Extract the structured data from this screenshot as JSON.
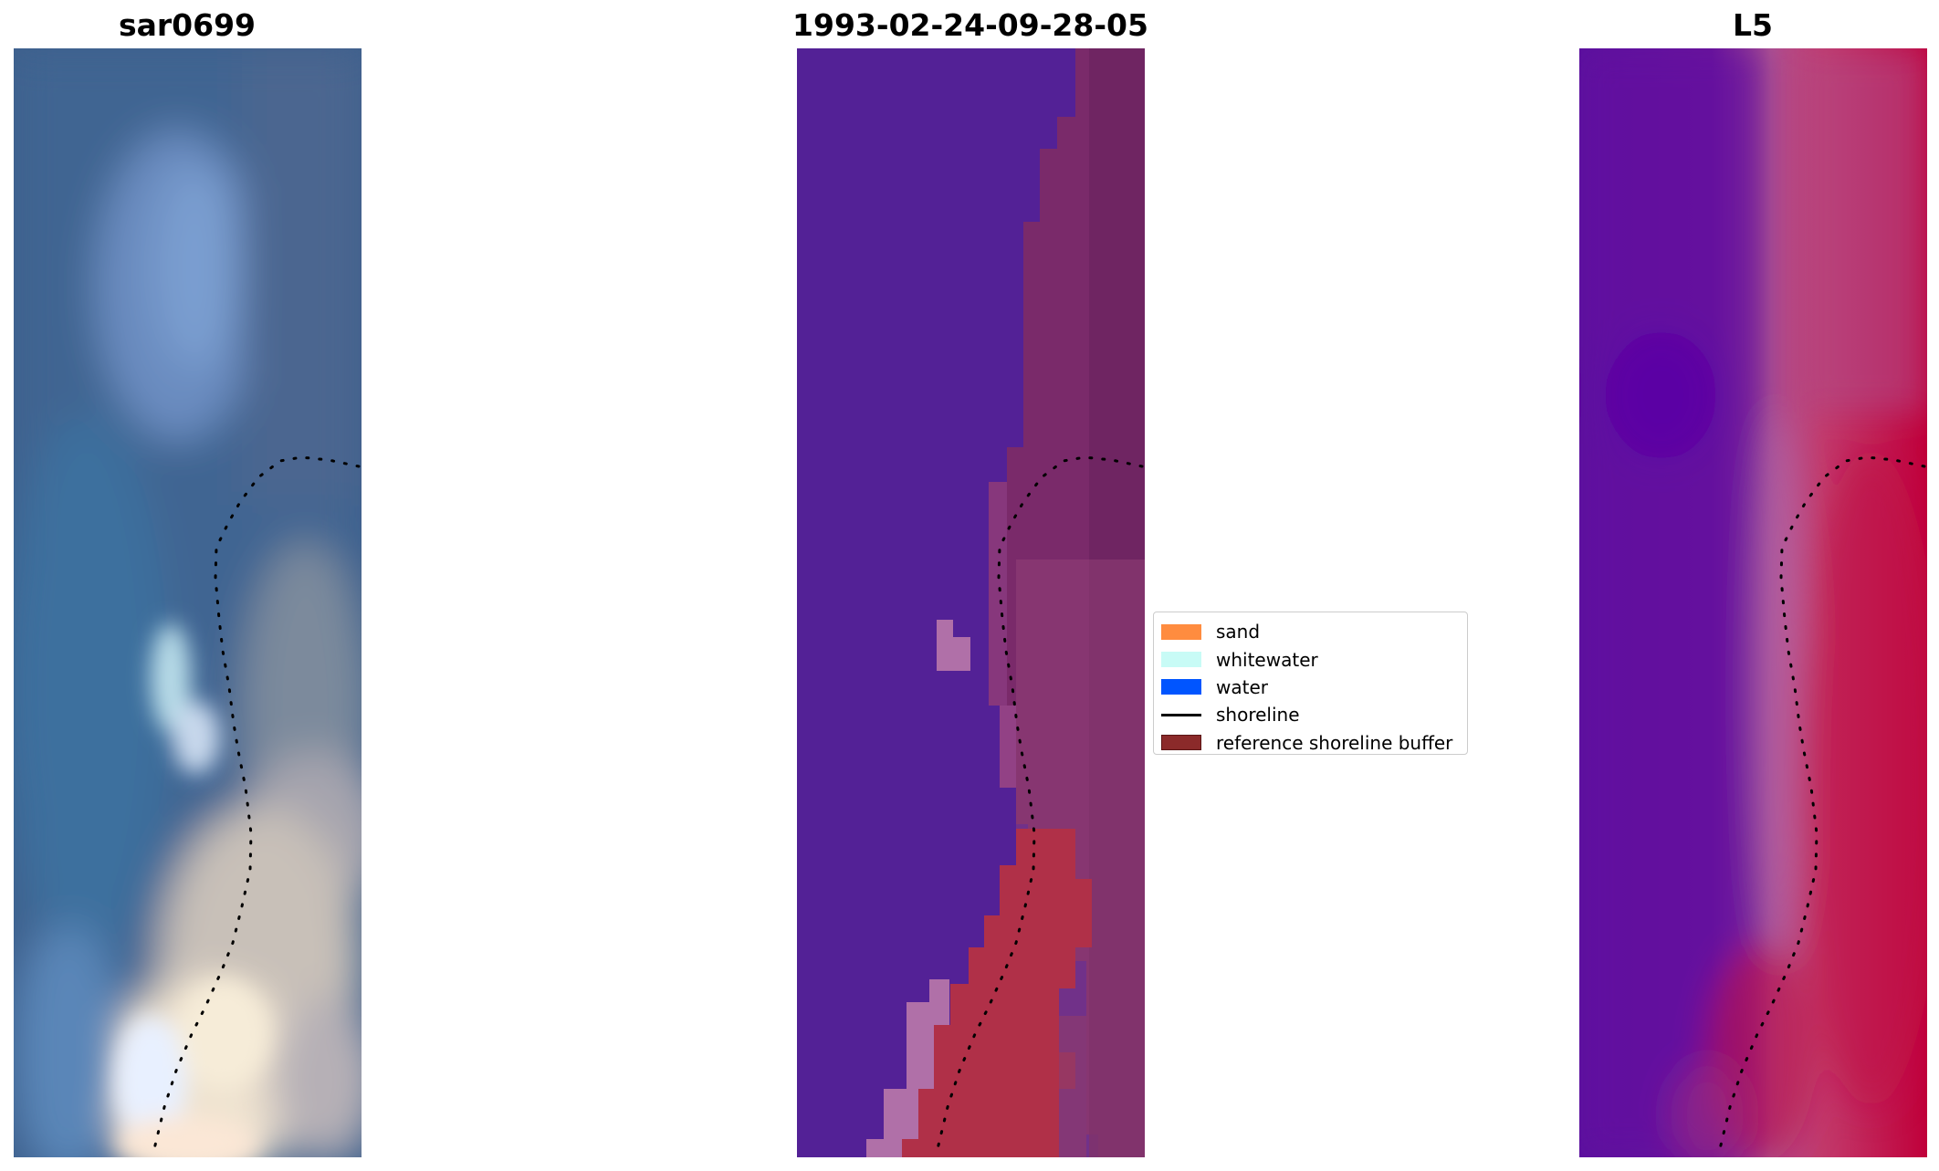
{
  "panels": [
    {
      "title": "sar0699",
      "kind": "rgb"
    },
    {
      "title": "1993-02-24-09-28-05",
      "kind": "classification"
    },
    {
      "title": "L5",
      "kind": "index"
    }
  ],
  "legend": {
    "items": [
      {
        "label": "sand",
        "color": "#ff8c3f",
        "type": "patch"
      },
      {
        "label": "whitewater",
        "color": "#c8fbf6",
        "type": "patch"
      },
      {
        "label": "water",
        "color": "#0055ff",
        "type": "patch"
      },
      {
        "label": "shoreline",
        "color": "#000000",
        "type": "line"
      },
      {
        "label": "reference shoreline buffer",
        "color": "#8b2a2a",
        "type": "patch"
      }
    ]
  },
  "colors": {
    "class_water_purple": "#532196",
    "class_land_magenta": "#7a2a6a",
    "class_sand_red": "#b03048",
    "class_white_pink": "#b070a8",
    "index_low_purple": "#5a0a9e",
    "index_high_crimson": "#c0003a"
  }
}
